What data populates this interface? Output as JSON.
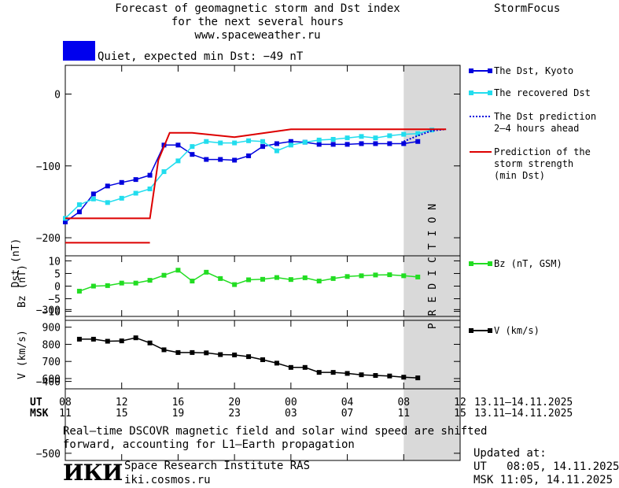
{
  "header": {
    "title_line1": "Forecast of geomagnetic storm and Dst index",
    "title_line2": "for the next several hours",
    "site": "www.spaceweather.ru",
    "brand": "StormFocus",
    "status_text": "Quiet, expected min Dst: −49 nT",
    "status_color": "#0000ee"
  },
  "colors": {
    "dst_kyoto": "#0000dd",
    "dst_recovered": "#22ddee",
    "dst_prediction": "#0000dd",
    "storm_strength": "#dd0000",
    "bz": "#22dd22",
    "v": "#000000",
    "prediction_zone": "#d9d9d9"
  },
  "chart_data": [
    {
      "type": "line",
      "ylabel": "Dst (nT)",
      "ylim": [
        -510,
        40
      ],
      "yticks": [
        0,
        -100,
        -200,
        -300,
        -400,
        -500
      ],
      "ytick_labels": [
        "0",
        "−100",
        "−200",
        "−300",
        "−400",
        "−500"
      ],
      "prediction_label": "PREDICTION",
      "series": [
        {
          "name": "The Dst, Kyoto",
          "key": "dst_kyoto",
          "x": [
            8,
            9,
            10,
            11,
            12,
            13,
            14,
            15,
            16,
            17,
            18,
            19,
            20,
            21,
            22,
            23,
            24,
            25,
            26,
            27,
            28,
            29,
            30,
            31,
            32,
            33
          ],
          "y": [
            -178,
            -164,
            -139,
            -128,
            -123,
            -119,
            -113,
            -71,
            -71,
            -84,
            -91,
            -91,
            -92,
            -86,
            -73,
            -69,
            -66,
            -67,
            -70,
            -70,
            -70,
            -69,
            -69,
            -69,
            -69,
            -66
          ]
        },
        {
          "name": "The recovered Dst",
          "key": "dst_recovered",
          "x": [
            8,
            9,
            10,
            11,
            12,
            13,
            14,
            15,
            16,
            17,
            18,
            19,
            20,
            21,
            22,
            23,
            24,
            25,
            26,
            27,
            28,
            29,
            30,
            31,
            32,
            33,
            34
          ],
          "y": [
            -173,
            -154,
            -146,
            -151,
            -145,
            -138,
            -132,
            -108,
            -93,
            -73,
            -66,
            -68,
            -68,
            -65,
            -66,
            -79,
            -71,
            -67,
            -64,
            -63,
            -61,
            -59,
            -61,
            -58,
            -56,
            -55,
            -50
          ]
        },
        {
          "name": "The Dst prediction\n2–4 hours ahead",
          "key": "dst_prediction",
          "dashed": true,
          "x": [
            32,
            33,
            34,
            35
          ],
          "y": [
            -66,
            -58,
            -51,
            -49
          ]
        },
        {
          "name": "Prediction of the\nstorm strength\n(min Dst)",
          "key": "storm_strength",
          "x": [
            8,
            14,
            14.6,
            15.4,
            17,
            20,
            24,
            35
          ],
          "y": [
            -173,
            -173,
            -92,
            -54,
            -54,
            -60,
            -49,
            -49
          ]
        },
        {
          "name": "",
          "key": "storm_strength",
          "x": [
            8,
            14
          ],
          "y": [
            -207,
            -207
          ]
        }
      ]
    },
    {
      "type": "line",
      "ylabel": "Bz (nT)",
      "ylim": [
        -12,
        12
      ],
      "yticks": [
        10,
        5,
        0,
        -5,
        -10
      ],
      "ytick_labels": [
        "10",
        "5",
        "0",
        "−5",
        "−10"
      ],
      "series": [
        {
          "name": "Bz (nT, GSM)",
          "key": "bz",
          "x": [
            9,
            10,
            11,
            12,
            13,
            14,
            15,
            16,
            17,
            18,
            19,
            20,
            21,
            22,
            23,
            24,
            25,
            26,
            27,
            28,
            29,
            30,
            31,
            32,
            33
          ],
          "y": [
            -2,
            0,
            0.2,
            1.2,
            1.2,
            2.3,
            4.3,
            6.3,
            2,
            5.5,
            3,
            0.6,
            2.5,
            2.7,
            3.4,
            2.6,
            3.3,
            2,
            3,
            3.8,
            4.1,
            4.4,
            4.5,
            4.1,
            3.6
          ]
        }
      ]
    },
    {
      "type": "line",
      "ylabel": "V (km/s)",
      "ylim": [
        540,
        940
      ],
      "yticks": [
        900,
        800,
        700,
        600
      ],
      "ytick_labels": [
        "900",
        "800",
        "700",
        "600"
      ],
      "series": [
        {
          "name": "V (km/s)",
          "key": "v",
          "x": [
            9,
            10,
            11,
            12,
            13,
            14,
            15,
            16,
            17,
            18,
            19,
            20,
            21,
            22,
            23,
            24,
            25,
            26,
            27,
            28,
            29,
            30,
            31,
            32,
            33
          ],
          "y": [
            830,
            830,
            818,
            820,
            838,
            808,
            768,
            752,
            752,
            750,
            740,
            738,
            728,
            710,
            690,
            665,
            665,
            636,
            636,
            630,
            622,
            618,
            615,
            608,
            604
          ]
        }
      ]
    }
  ],
  "time_axis": {
    "ut_label": "UT",
    "msk_label": "MSK",
    "xlim": [
      8,
      36
    ],
    "ticks": [
      8,
      12,
      16,
      20,
      24,
      28,
      32,
      36
    ],
    "ut_tick_labels": [
      "08",
      "12",
      "16",
      "20",
      "00",
      "04",
      "08",
      "12"
    ],
    "msk_tick_labels": [
      "11",
      "15",
      "19",
      "23",
      "03",
      "07",
      "11",
      "15"
    ],
    "date_range_ut": "13.11–14.11.2025",
    "date_range_msk": "13.11–14.11.2025",
    "prediction_start": 32
  },
  "footer": {
    "note_line1": "Real–time DSCOVR magnetic field and solar wind speed are shifted",
    "note_line2": "forward, accounting for L1–Earth propagation",
    "logo_text": "ИКИ",
    "institute": "Space Research Institute RAS",
    "site": "iki.cosmos.ru",
    "updated_label": "Updated at:",
    "updated_ut": "UT   08:05, 14.11.2025",
    "updated_msk": "MSK 11:05, 14.11.2025"
  }
}
